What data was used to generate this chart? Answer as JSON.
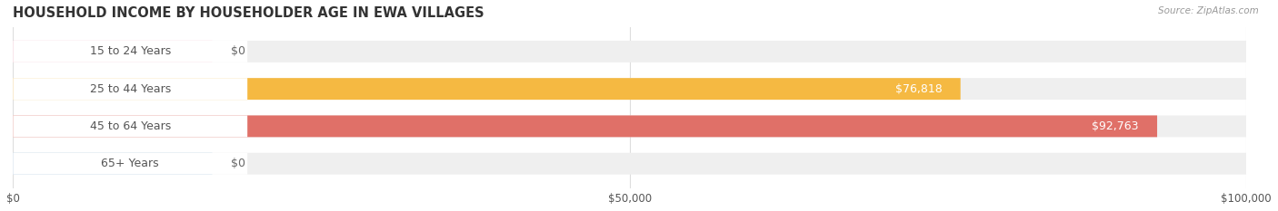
{
  "title": "HOUSEHOLD INCOME BY HOUSEHOLDER AGE IN EWA VILLAGES",
  "source": "Source: ZipAtlas.com",
  "categories": [
    "15 to 24 Years",
    "25 to 44 Years",
    "45 to 64 Years",
    "65+ Years"
  ],
  "values": [
    0,
    76818,
    92763,
    0
  ],
  "bar_colors": [
    "#f2a0b8",
    "#f5b942",
    "#e07068",
    "#a8c4e0"
  ],
  "track_color": "#efefef",
  "xmax": 100000,
  "xticks": [
    0,
    50000,
    100000
  ],
  "xtick_labels": [
    "$0",
    "$50,000",
    "$100,000"
  ],
  "bar_height": 0.58,
  "label_fontsize": 9,
  "title_fontsize": 10.5,
  "value_labels": [
    "$0",
    "$76,818",
    "$92,763",
    "$0"
  ],
  "background_color": "#ffffff",
  "label_color": "#555555",
  "title_color": "#333333",
  "source_color": "#999999",
  "value_label_color_inside": "#ffffff",
  "value_label_color_outside": "#666666",
  "white_label_bg": "#ffffff",
  "grid_color": "#dddddd"
}
